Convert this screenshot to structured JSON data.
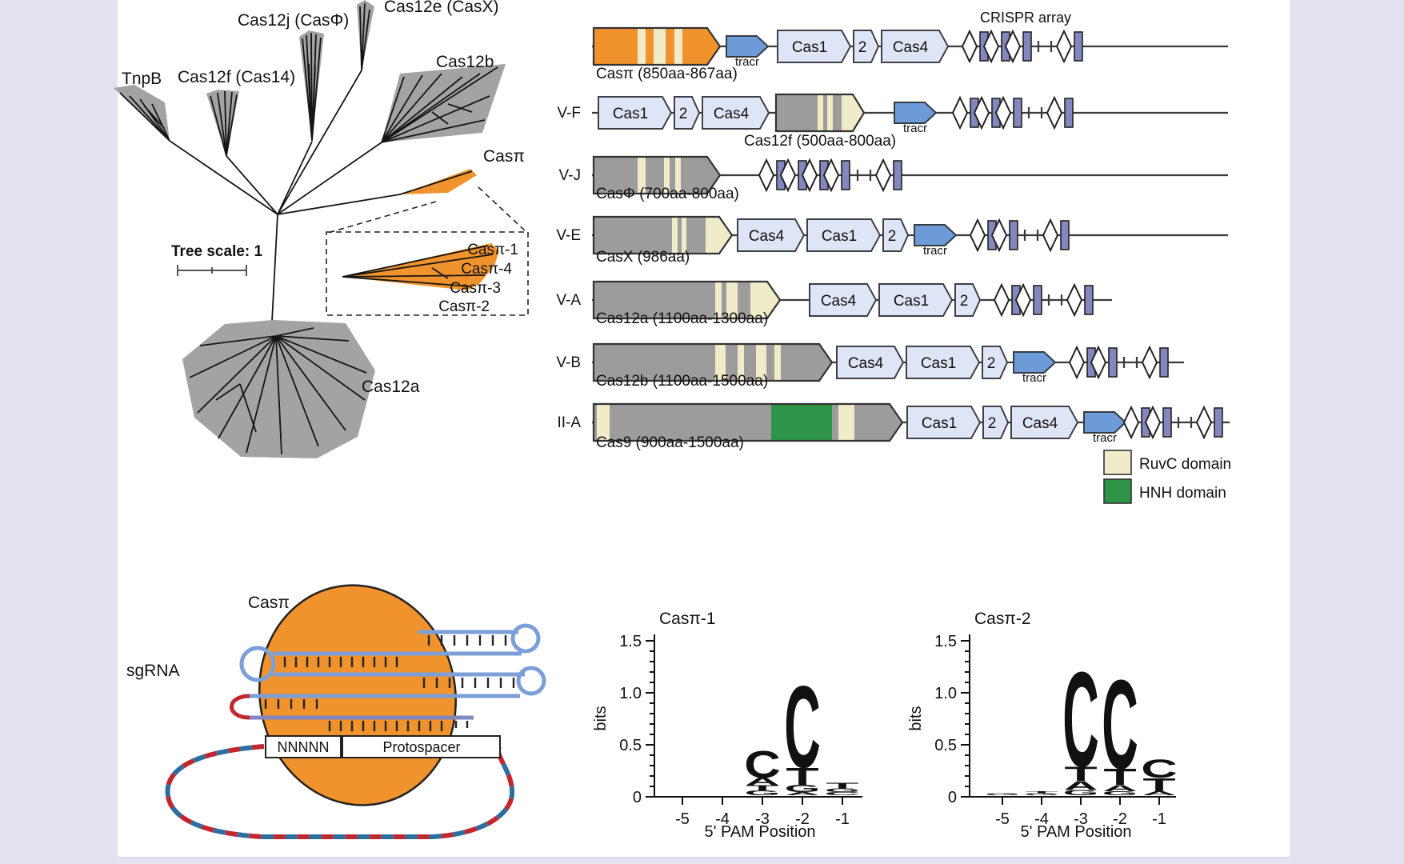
{
  "colors": {
    "page_bg": "#E2E2F0",
    "panel_bg": "#FFFFFF",
    "clade_gray": "#A3A3A3",
    "accent_orange": "#F0932D",
    "effector_gray": "#9C9C9C",
    "ruvc_cream": "#F0EBC9",
    "hnh_green": "#2E9447",
    "gene_box_fill": "#DEE5F6",
    "tracr_blue": "#6C9BD8",
    "repeat_slate": "#8287BE",
    "sgrna_blue": "#7B9FD8",
    "sgrna_slate": "#8287BE",
    "dna_red": "#C2272E",
    "dna_blue": "#2E6DA0",
    "logo_A": "#2CA048",
    "logo_C": "#2B6DA8",
    "logo_G": "#F2A71B",
    "logo_T": "#E02A2A"
  },
  "tree": {
    "scale_label": "Tree scale: 1",
    "labels": {
      "tnpb": "TnpB",
      "cas12f": "Cas12f (Cas14)",
      "cas12j": "Cas12j (CasΦ)",
      "cas12e": "Cas12e (CasX)",
      "cas12b": "Cas12b",
      "caspi": "Casπ",
      "cas12a": "Cas12a"
    },
    "inset": {
      "casp1": "Casπ-1",
      "casp4": "Casπ-4",
      "casp3": "Casπ-3",
      "casp2": "Casπ-2"
    }
  },
  "loci": {
    "array_label": "CRISPR array",
    "tracr_label": "tracr",
    "rows": [
      {
        "type": "",
        "caption": "Casπ (850aa-867aa)",
        "genes": [
          "Cas1",
          "2",
          "Cas4"
        ]
      },
      {
        "type": "V-F",
        "caption": "Cas12f (500aa-800aa)",
        "genes": [
          "Cas1",
          "2",
          "Cas4"
        ]
      },
      {
        "type": "V-J",
        "caption": "CasΦ (700aa-800aa)",
        "genes": []
      },
      {
        "type": "V-E",
        "caption": "CasX (986aa)",
        "genes": [
          "Cas4",
          "Cas1",
          "2"
        ]
      },
      {
        "type": "V-A",
        "caption": "Cas12a (1100aa-1300aa)",
        "genes": [
          "Cas4",
          "Cas1",
          "2"
        ]
      },
      {
        "type": "V-B",
        "caption": "Cas12b (1100aa-1500aa)",
        "genes": [
          "Cas4",
          "Cas1",
          "2"
        ]
      },
      {
        "type": "II-A",
        "caption": "Cas9 (900aa-1500aa)",
        "genes": [
          "Cas1",
          "2",
          "Cas4"
        ]
      }
    ],
    "legend": [
      {
        "label": "RuvC domain"
      },
      {
        "label": "HNH domain"
      }
    ]
  },
  "rnp": {
    "protein_label": "Casπ",
    "sgrna_label": "sgRNA",
    "pam_box": "NNNNN",
    "protospacer_box": "Protospacer"
  },
  "chart_data": [
    {
      "type": "sequence_logo",
      "title": "Casπ-1",
      "ylabel": "bits",
      "xlabel": "5' PAM Position",
      "ylim": [
        0,
        1.5
      ],
      "yticks": [
        0,
        0.5,
        1.0,
        1.5
      ],
      "positions": [
        -5,
        -4,
        -3,
        -2,
        -1
      ],
      "stacks": [
        [],
        [],
        [
          [
            "G",
            0.045
          ],
          [
            "T",
            0.05
          ],
          [
            "A",
            0.075
          ],
          [
            "C",
            0.27
          ]
        ],
        [
          [
            "A",
            0.03
          ],
          [
            "G",
            0.07
          ],
          [
            "T",
            0.17
          ],
          [
            "C",
            0.82
          ]
        ],
        [
          [
            "C",
            0.03
          ],
          [
            "G",
            0.035
          ],
          [
            "T",
            0.055
          ]
        ]
      ]
    },
    {
      "type": "sequence_logo",
      "title": "Casπ-2",
      "ylabel": "bits",
      "xlabel": "5' PAM Position",
      "ylim": [
        0,
        1.5
      ],
      "yticks": [
        0,
        0.5,
        1.0,
        1.5
      ],
      "positions": [
        -5,
        -4,
        -3,
        -2,
        -1
      ],
      "stacks": [
        [
          [
            "G",
            0.02
          ]
        ],
        [
          [
            "G",
            0.02
          ],
          [
            "T",
            0.02
          ]
        ],
        [
          [
            "G",
            0.05
          ],
          [
            "A",
            0.09
          ],
          [
            "T",
            0.14
          ],
          [
            "C",
            0.95
          ]
        ],
        [
          [
            "G",
            0.04
          ],
          [
            "A",
            0.06
          ],
          [
            "T",
            0.16
          ],
          [
            "C",
            0.89
          ]
        ],
        [
          [
            "A",
            0.04
          ],
          [
            "T",
            0.13
          ],
          [
            "C",
            0.18
          ]
        ]
      ]
    }
  ]
}
